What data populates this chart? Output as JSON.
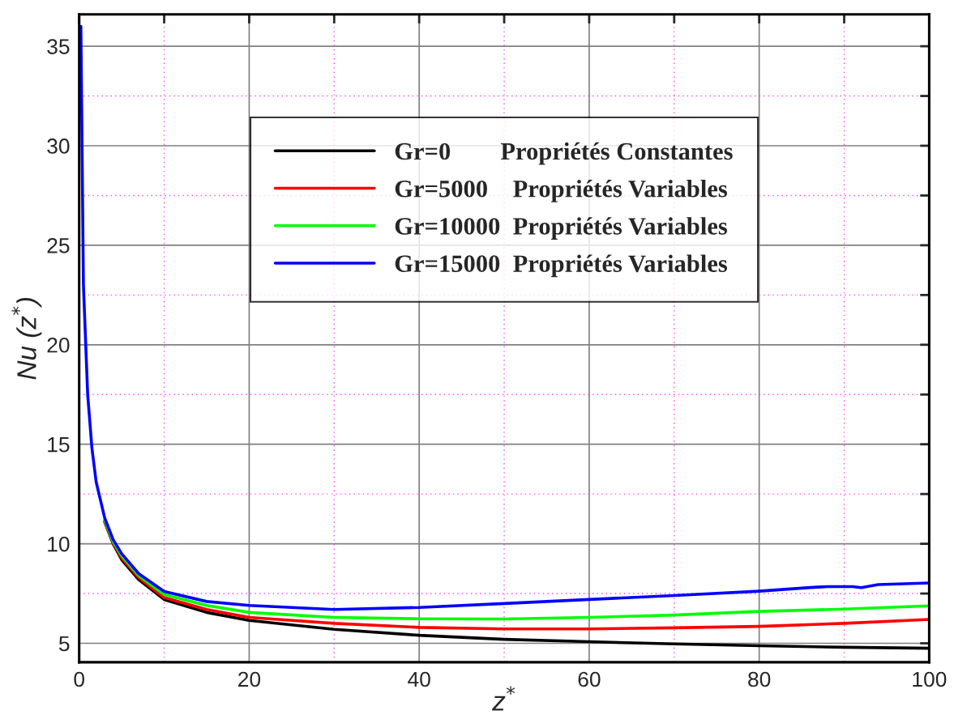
{
  "chart_data": {
    "type": "line",
    "xlabel": "z$^{*}$",
    "ylabel": "Nu (z$^{*}$)",
    "xlim": [
      0,
      100
    ],
    "ylim": [
      4.05,
      36.6
    ],
    "xticks": [
      0,
      {
        "value": 10,
        "label": null
      },
      20,
      {
        "value": 30,
        "label": null
      },
      40,
      {
        "value": 50,
        "label": null
      },
      60,
      {
        "value": 70,
        "label": null
      },
      80,
      {
        "value": 90,
        "label": null
      },
      100
    ],
    "yticks": [
      5,
      {
        "value": 7.5,
        "label": null
      },
      10,
      {
        "value": 12.5,
        "label": null
      },
      15,
      {
        "value": 17.5,
        "label": null
      },
      20,
      {
        "value": 22.5,
        "label": null
      },
      25,
      {
        "value": 27.5,
        "label": null
      },
      30,
      {
        "value": 32.5,
        "label": null
      },
      35
    ],
    "grid": true,
    "legend": "upper center",
    "marker": "none",
    "line_style": "solid",
    "series": [
      {
        "name": "Gr=0        Propriétés Constantes",
        "color": "#000000",
        "x": [
          3,
          4,
          5,
          7,
          10,
          15,
          20,
          30,
          40,
          50,
          60,
          70,
          80,
          90,
          100
        ],
        "values": [
          11.1,
          10,
          9.2,
          8.2,
          7.2,
          6.55,
          6.15,
          5.7,
          5.4,
          5.2,
          5.08,
          4.97,
          4.88,
          4.8,
          4.75
        ]
      },
      {
        "name": "Gr=5000    Propriétés Variables",
        "color": "#ff0000",
        "x": [
          3,
          4,
          5,
          7,
          10,
          15,
          20,
          30,
          40,
          50,
          60,
          70,
          80,
          90,
          100
        ],
        "values": [
          11.15,
          10.05,
          9.3,
          8.3,
          7.3,
          6.7,
          6.3,
          6.0,
          5.8,
          5.72,
          5.72,
          5.78,
          5.85,
          6.0,
          6.2
        ]
      },
      {
        "name": "Gr=10000  Propriétés Variables",
        "color": "#00ff00",
        "x": [
          3,
          4,
          5,
          7,
          10,
          15,
          20,
          30,
          40,
          50,
          60,
          70,
          80,
          90,
          100
        ],
        "values": [
          11.2,
          10.1,
          9.4,
          8.4,
          7.45,
          6.9,
          6.55,
          6.3,
          6.23,
          6.22,
          6.3,
          6.42,
          6.6,
          6.72,
          6.88
        ]
      },
      {
        "name": "Gr=15000  Propriétés Variables",
        "color": "#0000ff",
        "x": [
          0.2,
          0.5,
          1,
          1.5,
          2,
          3,
          4,
          5,
          7,
          10,
          15,
          20,
          30,
          40,
          50,
          60,
          70,
          80,
          86,
          88,
          91,
          92,
          94,
          100
        ],
        "values": [
          36,
          23,
          17.5,
          14.8,
          13.1,
          11.3,
          10.2,
          9.5,
          8.5,
          7.6,
          7.1,
          6.9,
          6.7,
          6.8,
          7.0,
          7.2,
          7.4,
          7.62,
          7.8,
          7.85,
          7.85,
          7.8,
          7.95,
          8.03
        ]
      }
    ]
  }
}
